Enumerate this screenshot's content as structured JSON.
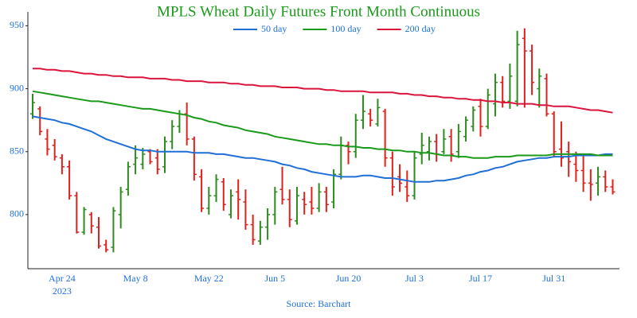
{
  "chart_data": {
    "type": "ohlc",
    "title": "MPLS Wheat Daily Futures Front Month Continuous",
    "source": "Source: Barchart",
    "x_year": "2023",
    "categories": [
      null,
      null,
      null,
      null,
      "Apr 24",
      null,
      null,
      null,
      null,
      null,
      null,
      null,
      null,
      null,
      "May 8",
      null,
      null,
      null,
      null,
      null,
      null,
      null,
      null,
      null,
      "May 22",
      null,
      null,
      null,
      null,
      null,
      null,
      null,
      null,
      "Jun 5",
      null,
      null,
      null,
      null,
      null,
      null,
      null,
      null,
      null,
      "Jun 20",
      null,
      null,
      null,
      null,
      null,
      null,
      null,
      null,
      "Jul 3",
      null,
      null,
      null,
      null,
      null,
      null,
      null,
      null,
      "Jul 17",
      null,
      null,
      null,
      null,
      null,
      null,
      null,
      null,
      null,
      "Jul 31",
      null,
      null,
      null,
      null,
      null,
      null,
      null,
      null
    ],
    "ohlc": {
      "up_color": "#2e8b1e",
      "down_color": "#e0201b",
      "open": [
        880,
        884,
        860,
        855,
        845,
        838,
        815,
        786,
        800,
        790,
        776,
        774,
        800,
        820,
        840,
        840,
        850,
        845,
        838,
        858,
        870,
        880,
        860,
        830,
        805,
        815,
        826,
        800,
        818,
        810,
        792,
        779,
        790,
        800,
        820,
        812,
        795,
        812,
        810,
        805,
        818,
        810,
        832,
        855,
        850,
        875,
        880,
        872,
        882,
        845,
        830,
        822,
        815,
        848,
        850,
        858,
        850,
        862,
        850,
        862,
        870,
        886,
        870,
        888,
        905,
        890,
        890,
        940,
        930,
        900,
        908,
        880,
        852,
        850,
        840,
        835,
        825,
        825,
        830,
        822
      ],
      "high": [
        896,
        886,
        868,
        860,
        848,
        843,
        818,
        806,
        802,
        798,
        780,
        806,
        822,
        842,
        855,
        853,
        852,
        852,
        862,
        875,
        883,
        889,
        862,
        836,
        822,
        832,
        829,
        820,
        828,
        820,
        800,
        795,
        805,
        822,
        838,
        820,
        822,
        818,
        822,
        825,
        822,
        836,
        862,
        858,
        880,
        895,
        884,
        892,
        884,
        850,
        840,
        835,
        850,
        865,
        862,
        864,
        868,
        868,
        872,
        878,
        886,
        892,
        900,
        912,
        910,
        920,
        946,
        948,
        935,
        916,
        912,
        882,
        874,
        858,
        850,
        848,
        836,
        838,
        835,
        828
      ],
      "low": [
        876,
        863,
        847,
        843,
        832,
        812,
        785,
        784,
        785,
        773,
        770,
        770,
        789,
        815,
        832,
        836,
        840,
        832,
        833,
        852,
        865,
        855,
        827,
        802,
        800,
        810,
        803,
        797,
        796,
        788,
        776,
        776,
        780,
        792,
        808,
        790,
        792,
        800,
        800,
        802,
        802,
        805,
        828,
        840,
        845,
        868,
        870,
        870,
        838,
        815,
        818,
        810,
        812,
        840,
        843,
        842,
        848,
        842,
        845,
        858,
        866,
        862,
        868,
        878,
        885,
        884,
        886,
        885,
        895,
        885,
        878,
        846,
        838,
        830,
        826,
        818,
        811,
        815,
        818,
        816
      ],
      "close": [
        889,
        866,
        852,
        846,
        838,
        815,
        786,
        804,
        791,
        775,
        772,
        803,
        818,
        838,
        845,
        848,
        842,
        836,
        858,
        870,
        880,
        860,
        832,
        805,
        815,
        828,
        808,
        815,
        812,
        792,
        780,
        790,
        800,
        818,
        812,
        796,
        815,
        808,
        805,
        818,
        808,
        832,
        855,
        850,
        875,
        882,
        875,
        885,
        845,
        822,
        825,
        815,
        845,
        855,
        858,
        848,
        860,
        848,
        866,
        875,
        883,
        870,
        895,
        905,
        890,
        910,
        935,
        930,
        905,
        910,
        880,
        850,
        845,
        842,
        835,
        825,
        824,
        830,
        822,
        818
      ]
    },
    "series": [
      {
        "name": "50 day",
        "color": "#1f6fd6",
        "values": [
          878,
          877,
          876,
          875,
          873,
          872,
          870,
          868,
          866,
          863,
          860,
          858,
          856,
          854,
          852,
          851,
          851,
          850,
          850,
          850,
          850,
          850,
          849,
          849,
          849,
          848,
          848,
          847,
          846,
          845,
          845,
          844,
          843,
          842,
          840,
          839,
          837,
          836,
          834,
          833,
          832,
          831,
          830,
          830,
          830,
          831,
          831,
          830,
          829,
          829,
          828,
          827,
          826,
          826,
          826,
          827,
          827,
          828,
          829,
          831,
          832,
          834,
          835,
          837,
          838,
          840,
          842,
          843,
          844,
          845,
          845,
          846,
          846,
          846,
          847,
          847,
          847,
          847,
          848,
          848
        ]
      },
      {
        "name": "100 day",
        "color": "#1a9a1a",
        "values": [
          898,
          897,
          896,
          895,
          894,
          893,
          892,
          891,
          890,
          890,
          889,
          888,
          887,
          886,
          885,
          884,
          884,
          883,
          882,
          881,
          880,
          879,
          877,
          876,
          874,
          873,
          871,
          870,
          869,
          867,
          866,
          865,
          864,
          862,
          861,
          860,
          859,
          858,
          857,
          856,
          856,
          855,
          855,
          854,
          854,
          853,
          853,
          852,
          852,
          851,
          851,
          850,
          850,
          849,
          849,
          848,
          847,
          847,
          846,
          846,
          845,
          845,
          845,
          846,
          846,
          846,
          847,
          847,
          847,
          847,
          847,
          848,
          848,
          848,
          848,
          848,
          848,
          847,
          847,
          847
        ]
      },
      {
        "name": "200 day",
        "color": "#dc143c",
        "values": [
          916,
          916,
          915,
          915,
          914,
          914,
          913,
          912,
          912,
          911,
          911,
          910,
          910,
          909,
          909,
          909,
          908,
          908,
          908,
          907,
          907,
          906,
          906,
          906,
          905,
          905,
          905,
          904,
          904,
          903,
          903,
          902,
          902,
          902,
          901,
          901,
          901,
          900,
          900,
          900,
          899,
          899,
          898,
          898,
          898,
          898,
          897,
          897,
          897,
          897,
          896,
          896,
          895,
          895,
          894,
          894,
          893,
          893,
          892,
          892,
          891,
          891,
          890,
          890,
          889,
          889,
          888,
          888,
          888,
          887,
          887,
          886,
          886,
          886,
          885,
          884,
          883,
          883,
          882,
          881
        ]
      }
    ],
    "ylim": [
      757,
      961
    ],
    "yticks": [
      800,
      850,
      900,
      950
    ],
    "grid": false
  }
}
